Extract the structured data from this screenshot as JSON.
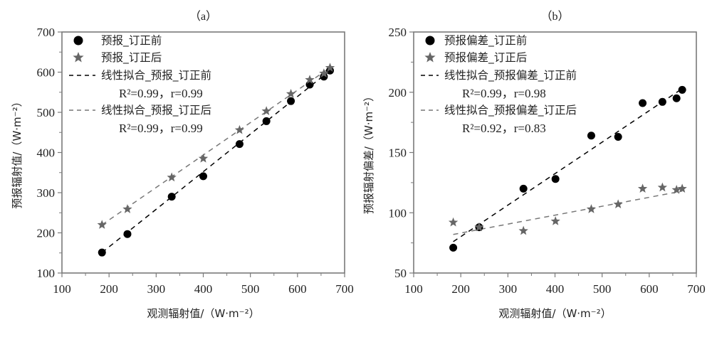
{
  "chart_data": [
    {
      "type": "scatter",
      "panel_label": "（a）",
      "xlabel": "观测辐射值/（W·m⁻²）",
      "ylabel": "预报辐射值/（W·m⁻²）",
      "xlim": [
        100,
        700
      ],
      "ylim": [
        100,
        700
      ],
      "xticks": [
        100,
        200,
        300,
        400,
        500,
        600,
        700
      ],
      "yticks": [
        100,
        200,
        300,
        400,
        500,
        600,
        700
      ],
      "grid": false,
      "legend_position": "top-left",
      "series": [
        {
          "name": "预报_订正前",
          "marker": "circle",
          "color": "#000000",
          "x": [
            185,
            239,
            333,
            400,
            477,
            534,
            586,
            626,
            656,
            669
          ],
          "y": [
            151,
            197,
            290,
            341,
            421,
            478,
            528,
            569,
            589,
            604
          ]
        },
        {
          "name": "预报_订正后",
          "marker": "star",
          "color": "#666666",
          "x": [
            185,
            239,
            333,
            400,
            477,
            534,
            586,
            626,
            656,
            669
          ],
          "y": [
            220,
            259,
            338,
            385,
            456,
            503,
            546,
            581,
            597,
            611
          ]
        }
      ],
      "fits": [
        {
          "name": "线性拟合_预报_订正前",
          "stat": "R²=0.99，r=0.99",
          "color": "#000000",
          "x": [
            185,
            669
          ],
          "y": [
            151,
            604
          ]
        },
        {
          "name": "线性拟合_预报_订正后",
          "stat": "R²=0.99，r=0.99",
          "color": "#777777",
          "x": [
            185,
            669
          ],
          "y": [
            220,
            611
          ]
        }
      ]
    },
    {
      "type": "scatter",
      "panel_label": "（b）",
      "xlabel": "观测辐射值/（W·m⁻²）",
      "ylabel": "预报辐射偏差/（W·m⁻²）",
      "xlim": [
        100,
        700
      ],
      "ylim": [
        50,
        250
      ],
      "xticks": [
        100,
        200,
        300,
        400,
        500,
        600,
        700
      ],
      "yticks": [
        50,
        100,
        150,
        200,
        250
      ],
      "grid": false,
      "legend_position": "top-left",
      "series": [
        {
          "name": "预报偏差_订正前",
          "marker": "circle",
          "color": "#000000",
          "x": [
            184,
            239,
            333,
            401,
            477,
            534,
            586,
            628,
            658,
            670
          ],
          "y": [
            71,
            88,
            120,
            128,
            164,
            163,
            191,
            192,
            195,
            202
          ]
        },
        {
          "name": "预报偏差_订正后",
          "marker": "star",
          "color": "#666666",
          "x": [
            184,
            239,
            333,
            401,
            477,
            534,
            586,
            628,
            658,
            670
          ],
          "y": [
            92,
            88,
            85,
            93,
            103,
            107,
            120,
            121,
            119,
            120
          ]
        }
      ],
      "fits": [
        {
          "name": "线性拟合_预报偏差_订正前",
          "stat": "R²=0.99，r=0.98",
          "color": "#000000",
          "x": [
            184,
            670
          ],
          "y": [
            76,
            203
          ]
        },
        {
          "name": "线性拟合_预报偏差_订正后",
          "stat": "R²=0.92，r=0.83",
          "color": "#777777",
          "x": [
            184,
            670
          ],
          "y": [
            82,
            118
          ]
        }
      ]
    }
  ]
}
